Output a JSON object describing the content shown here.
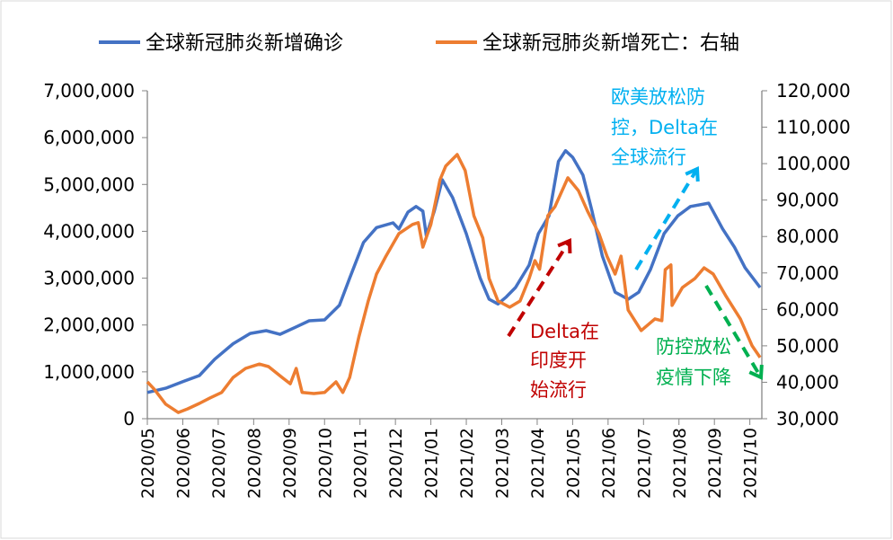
{
  "chart_data": {
    "type": "line",
    "title": "",
    "legend_position": "top",
    "grid": false,
    "x_ticks": [
      "2020/05",
      "2020/06",
      "2020/07",
      "2020/08",
      "2020/09",
      "2020/10",
      "2020/11",
      "2020/12",
      "2021/01",
      "2021/02",
      "2021/03",
      "2021/04",
      "2021/05",
      "2021/06",
      "2021/07",
      "2021/08",
      "2021/09",
      "2021/10"
    ],
    "y_left": {
      "range": [
        0,
        7000000
      ],
      "ticks": [
        "0",
        "1,000,000",
        "2,000,000",
        "3,000,000",
        "4,000,000",
        "5,000,000",
        "6,000,000",
        "7,000,000"
      ]
    },
    "y_right": {
      "range": [
        30000,
        120000
      ],
      "ticks": [
        "30,000",
        "40,000",
        "50,000",
        "60,000",
        "70,000",
        "80,000",
        "90,000",
        "100,000",
        "110,000",
        "120,000"
      ]
    },
    "series": [
      {
        "name": "全球新冠肺炎新增确诊",
        "axis": "left",
        "color": "#4472c4",
        "points": [
          [
            "2020-05-01",
            560000
          ],
          [
            "2020-05-17",
            650000
          ],
          [
            "2020-06-02",
            800000
          ],
          [
            "2020-06-15",
            920000
          ],
          [
            "2020-06-28",
            1270000
          ],
          [
            "2020-07-14",
            1600000
          ],
          [
            "2020-07-29",
            1820000
          ],
          [
            "2020-08-12",
            1880000
          ],
          [
            "2020-08-24",
            1800000
          ],
          [
            "2020-09-07",
            1960000
          ],
          [
            "2020-09-18",
            2090000
          ],
          [
            "2020-10-01",
            2110000
          ],
          [
            "2020-10-14",
            2420000
          ],
          [
            "2020-10-23",
            3000000
          ],
          [
            "2020-11-04",
            3760000
          ],
          [
            "2020-11-15",
            4080000
          ],
          [
            "2020-11-29",
            4180000
          ],
          [
            "2020-12-04",
            4050000
          ],
          [
            "2020-12-12",
            4410000
          ],
          [
            "2020-12-19",
            4530000
          ],
          [
            "2020-12-25",
            4430000
          ],
          [
            "2020-12-28",
            3910000
          ],
          [
            "2021-01-04",
            4430000
          ],
          [
            "2021-01-11",
            5100000
          ],
          [
            "2021-01-20",
            4720000
          ],
          [
            "2021-02-01",
            3950000
          ],
          [
            "2021-02-12",
            3000000
          ],
          [
            "2021-02-19",
            2550000
          ],
          [
            "2021-02-26",
            2450000
          ],
          [
            "2021-03-05",
            2600000
          ],
          [
            "2021-03-13",
            2800000
          ],
          [
            "2021-03-25",
            3280000
          ],
          [
            "2021-04-02",
            3950000
          ],
          [
            "2021-04-11",
            4330000
          ],
          [
            "2021-04-19",
            5490000
          ],
          [
            "2021-04-25",
            5720000
          ],
          [
            "2021-05-01",
            5580000
          ],
          [
            "2021-05-10",
            5200000
          ],
          [
            "2021-05-18",
            4430000
          ],
          [
            "2021-05-27",
            3470000
          ],
          [
            "2021-06-07",
            2700000
          ],
          [
            "2021-06-18",
            2550000
          ],
          [
            "2021-06-27",
            2700000
          ],
          [
            "2021-07-07",
            3180000
          ],
          [
            "2021-07-19",
            3950000
          ],
          [
            "2021-07-31",
            4330000
          ],
          [
            "2021-08-11",
            4530000
          ],
          [
            "2021-08-27",
            4600000
          ],
          [
            "2021-09-08",
            4050000
          ],
          [
            "2021-09-18",
            3660000
          ],
          [
            "2021-09-27",
            3220000
          ],
          [
            "2021-10-10",
            2800000
          ]
        ]
      },
      {
        "name": "全球新冠肺炎新增死亡：右轴",
        "axis": "right",
        "color": "#ed7d31",
        "points": [
          [
            "2020-05-01",
            40100
          ],
          [
            "2020-05-07",
            38100
          ],
          [
            "2020-05-17",
            34000
          ],
          [
            "2020-05-28",
            31700
          ],
          [
            "2020-06-05",
            32700
          ],
          [
            "2020-06-15",
            34200
          ],
          [
            "2020-06-24",
            35700
          ],
          [
            "2020-07-04",
            37200
          ],
          [
            "2020-07-14",
            41300
          ],
          [
            "2020-07-25",
            43800
          ],
          [
            "2020-08-06",
            45000
          ],
          [
            "2020-08-14",
            44300
          ],
          [
            "2020-08-26",
            41300
          ],
          [
            "2020-09-02",
            39600
          ],
          [
            "2020-09-07",
            43800
          ],
          [
            "2020-09-12",
            37200
          ],
          [
            "2020-09-22",
            36900
          ],
          [
            "2020-10-01",
            37200
          ],
          [
            "2020-10-11",
            40100
          ],
          [
            "2020-10-17",
            37200
          ],
          [
            "2020-10-23",
            41300
          ],
          [
            "2020-10-31",
            52400
          ],
          [
            "2020-11-08",
            62300
          ],
          [
            "2020-11-15",
            69700
          ],
          [
            "2020-11-23",
            74600
          ],
          [
            "2020-12-04",
            80800
          ],
          [
            "2020-12-16",
            83300
          ],
          [
            "2020-12-21",
            83800
          ],
          [
            "2020-12-25",
            77100
          ],
          [
            "2021-01-01",
            83300
          ],
          [
            "2021-01-09",
            95600
          ],
          [
            "2021-01-14",
            99300
          ],
          [
            "2021-01-24",
            102500
          ],
          [
            "2021-01-31",
            98100
          ],
          [
            "2021-02-07",
            85700
          ],
          [
            "2021-02-14",
            79600
          ],
          [
            "2021-02-19",
            68500
          ],
          [
            "2021-02-26",
            62300
          ],
          [
            "2021-03-08",
            60600
          ],
          [
            "2021-03-17",
            62300
          ],
          [
            "2021-03-25",
            68500
          ],
          [
            "2021-03-30",
            73400
          ],
          [
            "2021-04-03",
            71000
          ],
          [
            "2021-04-10",
            85700
          ],
          [
            "2021-04-16",
            88200
          ],
          [
            "2021-04-27",
            96100
          ],
          [
            "2021-05-06",
            92600
          ],
          [
            "2021-05-14",
            87000
          ],
          [
            "2021-05-24",
            80800
          ],
          [
            "2021-05-31",
            74600
          ],
          [
            "2021-06-07",
            69700
          ],
          [
            "2021-06-12",
            74600
          ],
          [
            "2021-06-18",
            59800
          ],
          [
            "2021-06-29",
            54200
          ],
          [
            "2021-07-11",
            57400
          ],
          [
            "2021-07-17",
            56900
          ],
          [
            "2021-07-20",
            70900
          ],
          [
            "2021-07-25",
            72200
          ],
          [
            "2021-07-26",
            61100
          ],
          [
            "2021-08-04",
            66000
          ],
          [
            "2021-08-15",
            68500
          ],
          [
            "2021-08-23",
            71400
          ],
          [
            "2021-08-31",
            69700
          ],
          [
            "2021-09-11",
            63500
          ],
          [
            "2021-09-23",
            57400
          ],
          [
            "2021-10-03",
            50000
          ],
          [
            "2021-10-10",
            46800
          ]
        ]
      }
    ],
    "annotations": [
      {
        "lines": [
          "Delta在",
          "印度开",
          "始流行"
        ],
        "color": "#c00000"
      },
      {
        "lines": [
          "欧美放松防",
          "控，Delta在",
          "全球流行"
        ],
        "color": "#00b0f0"
      },
      {
        "lines": [
          "防控放松",
          "疫情下降"
        ],
        "color": "#00b050"
      }
    ]
  }
}
